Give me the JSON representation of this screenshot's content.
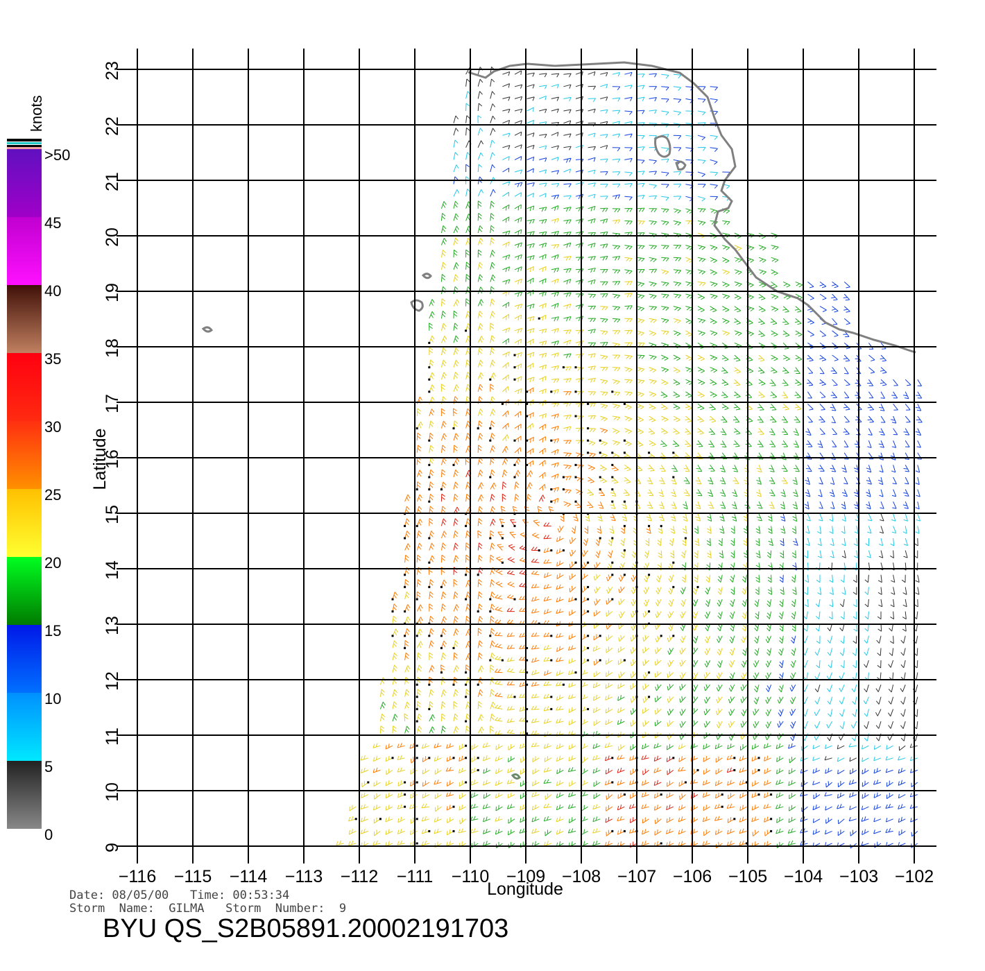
{
  "axes": {
    "x_label": "Longitude",
    "y_label": "Latitude",
    "lon_ticks": [
      -116,
      -115,
      -114,
      -113,
      -112,
      -111,
      -110,
      -109,
      -108,
      -107,
      -106,
      -105,
      -104,
      -103,
      -102
    ],
    "lat_ticks": [
      9,
      10,
      11,
      12,
      13,
      14,
      15,
      16,
      17,
      18,
      19,
      20,
      21,
      22,
      23
    ],
    "lon_range": [
      -116,
      -101.6
    ],
    "lat_range": [
      9,
      23
    ]
  },
  "colorbar": {
    "unit": "knots",
    "labels": [
      ">50",
      "45",
      "40",
      "35",
      "30",
      "25",
      "20",
      "15",
      "10",
      "5",
      "0"
    ],
    "bands": [
      {
        "range": [
          45,
          50
        ],
        "color": "#6a10c0"
      },
      {
        "range": [
          40,
          45
        ],
        "color": "#dd00dd"
      },
      {
        "range": [
          35,
          40
        ],
        "color": "#7a4a30"
      },
      {
        "range": [
          30,
          35
        ],
        "color": "#ff2a10"
      },
      {
        "range": [
          25,
          30
        ],
        "color": "#ff8000"
      },
      {
        "range": [
          20,
          25
        ],
        "color": "#ffdd00"
      },
      {
        "range": [
          15,
          20
        ],
        "color": "#00cc00"
      },
      {
        "range": [
          10,
          15
        ],
        "color": "#0030ff"
      },
      {
        "range": [
          5,
          10
        ],
        "color": "#00c8ff"
      },
      {
        "range": [
          0,
          5
        ],
        "color": "#555555"
      }
    ]
  },
  "wind_field": {
    "description_colors": {
      "0-5": "#333333",
      "5-10": "#22c8e8",
      "10-15": "#1040e0",
      "15-20": "#22aa22",
      "20-25": "#e8d020",
      "25-30": "#ff7a00",
      "30-35": "#e02010"
    }
  },
  "metadata": {
    "date_line": "Date: 08/05/00   Time: 00:53:34",
    "storm_line": "Storm  Name:  GILMA   Storm  Number:  9",
    "file_id": "BYU  QS_S2B05891.20002191703"
  }
}
